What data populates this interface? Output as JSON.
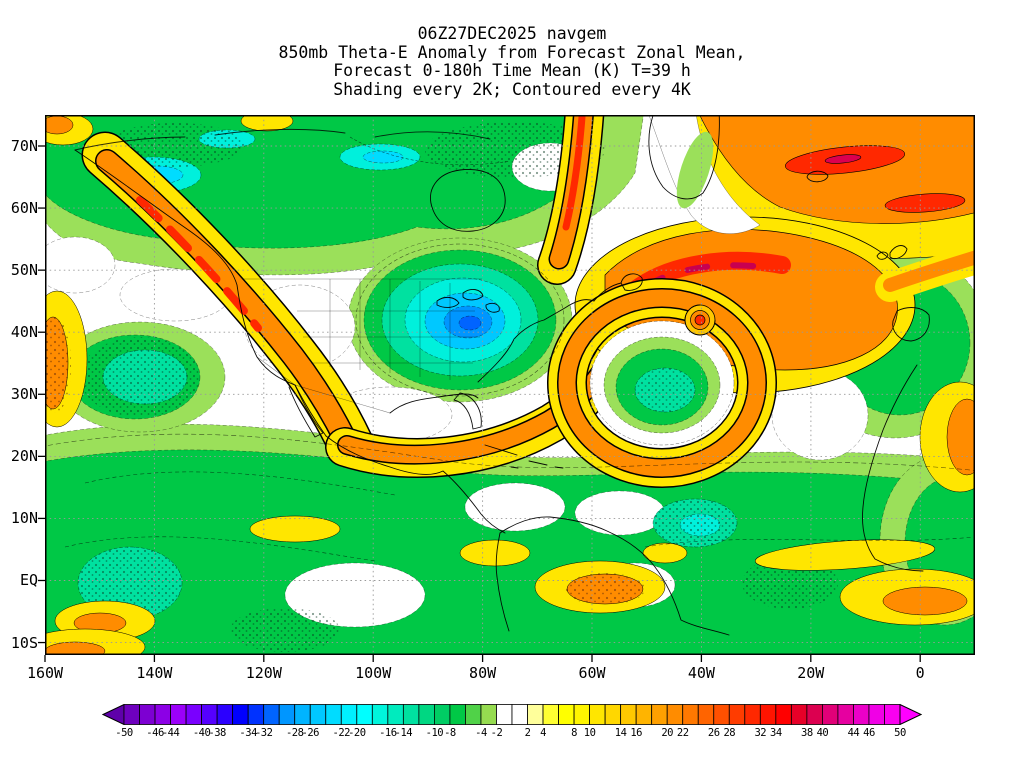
{
  "chart_data": {
    "type": "heatmap",
    "titles": {
      "line1": "06Z27DEC2025 navgem",
      "line2": "850mb Theta-E Anomaly from Forecast Zonal Mean,",
      "line3": "Forecast 0-180h Time Mean (K) T=39 h",
      "line4": "Shading every 2K; Contoured every 4K"
    },
    "units": "K",
    "shading_interval_K": 2,
    "contour_interval_K": 4,
    "shaded_range_K": [
      -50,
      50
    ],
    "axes": {
      "lat_labels": [
        "70N",
        "60N",
        "50N",
        "40N",
        "30N",
        "20N",
        "10N",
        "EQ",
        "10S"
      ],
      "lon_labels": [
        "160W",
        "140W",
        "120W",
        "100W",
        "80W",
        "60W",
        "40W",
        "20W",
        "0"
      ]
    },
    "colorbar": {
      "tick_labels": [
        "-50",
        "-46",
        "-44",
        "-40",
        "-38",
        "-34",
        "-32",
        "-28",
        "-26",
        "-22",
        "-20",
        "-16",
        "-14",
        "-10",
        "-8",
        "-4",
        "-2",
        "2",
        "4",
        "8",
        "10",
        "14",
        "16",
        "20",
        "22",
        "26",
        "28",
        "32",
        "34",
        "38",
        "40",
        "44",
        "46",
        "50"
      ],
      "left_arrow_color": "#5f00aa",
      "right_arrow_color": "#ff00ff",
      "band_colors": [
        "#6e00be",
        "#7d00d2",
        "#8c00e6",
        "#9b00fa",
        "#7a00ff",
        "#5500ff",
        "#2b00ff",
        "#0000ff",
        "#0032ff",
        "#0064ff",
        "#0096ff",
        "#00b4ff",
        "#00c8ff",
        "#00dcff",
        "#00f0ff",
        "#00ffff",
        "#00f5dc",
        "#00ebbe",
        "#00e1a0",
        "#00d782",
        "#00cd64",
        "#00c846",
        "#50d248",
        "#96dc50",
        "#ffffff",
        "#ffffff",
        "#ffff9b",
        "#ffff32",
        "#ffff00",
        "#fff500",
        "#ffe600",
        "#ffd700",
        "#ffc800",
        "#ffb400",
        "#ffa000",
        "#ff8c00",
        "#ff7800",
        "#ff6400",
        "#ff5000",
        "#ff3c00",
        "#ff2800",
        "#ff1400",
        "#ff0000",
        "#e60028",
        "#dc0050",
        "#e10078",
        "#e600a0",
        "#eb00c8",
        "#f000e6",
        "#fa00f0"
      ]
    },
    "notable_features": [
      {
        "feature": "negative theta-e anomaly pool (cyan/blue shading)",
        "location": "central and eastern North America, ~30N-50N 100W-70W",
        "approx_extreme_K": -24
      },
      {
        "feature": "strong positive anomaly ridge with embedded vortex/spiral",
        "location": "western and central North Atlantic, ~35N-55N 65W-25W",
        "approx_extreme_K": 32
      },
      {
        "feature": "positive anomaly band",
        "location": "along North American west coast from Gulf of Alaska to ~30N 115W",
        "approx_extreme_K": 26
      },
      {
        "feature": "broad positive anomaly region",
        "location": "high-latitude northeast Atlantic / Europe, ~55N-75N 30W-0",
        "approx_extreme_K": 34
      },
      {
        "feature": "weak negative (green) anomalies with speckled contour clusters",
        "location": "widespread across tropics and subtropics",
        "approx_extreme_K": -10
      }
    ]
  }
}
